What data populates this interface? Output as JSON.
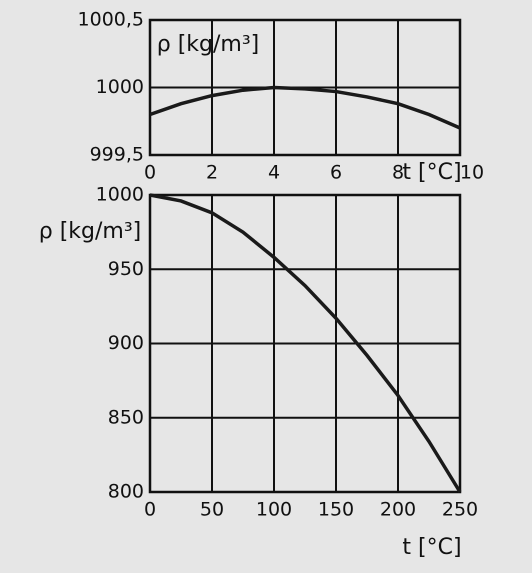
{
  "chart_data": [
    {
      "type": "line",
      "y_label": "ρ [kg/m³]",
      "x_label": "t [°C]",
      "x": [
        0,
        1,
        2,
        3,
        4,
        5,
        6,
        7,
        8,
        9,
        10
      ],
      "series": [
        {
          "color": "#1a1a1a",
          "values": [
            999.8,
            999.88,
            999.94,
            999.98,
            1000,
            999.99,
            999.97,
            999.93,
            999.88,
            999.8,
            999.7
          ]
        }
      ],
      "xlim": [
        0,
        10
      ],
      "ylim": [
        999.5,
        1000.5
      ],
      "xticks": [
        0,
        2,
        4,
        6,
        8,
        10
      ],
      "yticks": [
        {
          "value": 999.5,
          "label": "999,5"
        },
        1000,
        {
          "value": 1000.5,
          "label": "1000,5"
        }
      ],
      "grid": true
    },
    {
      "type": "line",
      "y_label": "ρ [kg/m³]",
      "x_label": "t [°C]",
      "x": [
        0,
        25,
        50,
        75,
        100,
        125,
        150,
        175,
        200,
        225,
        250
      ],
      "series": [
        {
          "color": "#1a1a1a",
          "values": [
            1000,
            996,
            988,
            975,
            958,
            939,
            917,
            892,
            865,
            834,
            800
          ]
        }
      ],
      "xlim": [
        0,
        250
      ],
      "ylim": [
        800,
        1000
      ],
      "xticks": [
        0,
        50,
        100,
        150,
        200,
        250
      ],
      "yticks": [
        800,
        850,
        900,
        950,
        1000
      ],
      "grid": true
    }
  ]
}
